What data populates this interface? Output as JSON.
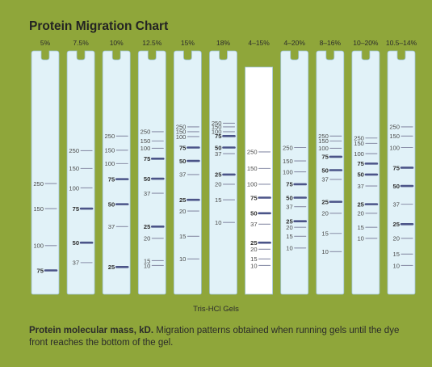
{
  "title": "Protein Migration Chart",
  "gel_type": "Tris-HCl Gels",
  "caption": {
    "bold": "Protein molecular mass, kD.",
    "text": " Migration patterns obtained when running gels until the dye front reaches the bottom of the gel."
  },
  "colors": {
    "background": "#8fa63a",
    "lane": "#e1f2f8",
    "lane_border": "#9fc3d4",
    "selected_lane": "#ffffff",
    "thin_band": "#8a8fa8",
    "thick_band": "#4b5488",
    "label": "#4a4a4a"
  },
  "chart_data": {
    "type": "diagram",
    "description_unit": "kD",
    "selected_lane": "4–15%",
    "lanes": [
      {
        "name": "5%",
        "bands": [
          {
            "kd": "250",
            "rel": 0.545,
            "bold": false
          },
          {
            "kd": "150",
            "rel": 0.648,
            "bold": false
          },
          {
            "kd": "100",
            "rel": 0.8,
            "bold": false
          },
          {
            "kd": "75",
            "rel": 0.902,
            "bold": true
          }
        ]
      },
      {
        "name": "7.5%",
        "bands": [
          {
            "kd": "250",
            "rel": 0.41,
            "bold": false
          },
          {
            "kd": "150",
            "rel": 0.483,
            "bold": false
          },
          {
            "kd": "100",
            "rel": 0.563,
            "bold": false
          },
          {
            "kd": "75",
            "rel": 0.648,
            "bold": true
          },
          {
            "kd": "50",
            "rel": 0.788,
            "bold": true
          },
          {
            "kd": "37",
            "rel": 0.87,
            "bold": false
          }
        ]
      },
      {
        "name": "10%",
        "bands": [
          {
            "kd": "250",
            "rel": 0.35,
            "bold": false
          },
          {
            "kd": "150",
            "rel": 0.408,
            "bold": false
          },
          {
            "kd": "100",
            "rel": 0.463,
            "bold": false
          },
          {
            "kd": "75",
            "rel": 0.527,
            "bold": true
          },
          {
            "kd": "50",
            "rel": 0.63,
            "bold": true
          },
          {
            "kd": "37",
            "rel": 0.722,
            "bold": false
          },
          {
            "kd": "25",
            "rel": 0.888,
            "bold": true
          }
        ]
      },
      {
        "name": "12.5%",
        "bands": [
          {
            "kd": "250",
            "rel": 0.332,
            "bold": false
          },
          {
            "kd": "150",
            "rel": 0.37,
            "bold": false
          },
          {
            "kd": "100",
            "rel": 0.4,
            "bold": false
          },
          {
            "kd": "75",
            "rel": 0.443,
            "bold": true
          },
          {
            "kd": "50",
            "rel": 0.525,
            "bold": true
          },
          {
            "kd": "37",
            "rel": 0.585,
            "bold": false
          },
          {
            "kd": "25",
            "rel": 0.722,
            "bold": true
          },
          {
            "kd": "20",
            "rel": 0.77,
            "bold": false
          },
          {
            "kd": "15",
            "rel": 0.862,
            "bold": false
          },
          {
            "kd": "10",
            "rel": 0.882,
            "bold": false
          }
        ]
      },
      {
        "name": "15%",
        "bands": [
          {
            "kd": "250",
            "rel": 0.312,
            "bold": false
          },
          {
            "kd": "150",
            "rel": 0.332,
            "bold": false
          },
          {
            "kd": "100",
            "rel": 0.352,
            "bold": false
          },
          {
            "kd": "75",
            "rel": 0.397,
            "bold": true
          },
          {
            "kd": "50",
            "rel": 0.452,
            "bold": true
          },
          {
            "kd": "37",
            "rel": 0.508,
            "bold": false
          },
          {
            "kd": "25",
            "rel": 0.612,
            "bold": true
          },
          {
            "kd": "20",
            "rel": 0.658,
            "bold": false
          },
          {
            "kd": "15",
            "rel": 0.762,
            "bold": false
          },
          {
            "kd": "10",
            "rel": 0.855,
            "bold": false
          }
        ]
      },
      {
        "name": "18%",
        "bands": [
          {
            "kd": "250",
            "rel": 0.297,
            "bold": false
          },
          {
            "kd": "150",
            "rel": 0.312,
            "bold": false
          },
          {
            "kd": "100",
            "rel": 0.332,
            "bold": false
          },
          {
            "kd": "75",
            "rel": 0.35,
            "bold": true
          },
          {
            "kd": "50",
            "rel": 0.397,
            "bold": true
          },
          {
            "kd": "37",
            "rel": 0.422,
            "bold": false
          },
          {
            "kd": "25",
            "rel": 0.508,
            "bold": true
          },
          {
            "kd": "20",
            "rel": 0.548,
            "bold": false
          },
          {
            "kd": "15",
            "rel": 0.612,
            "bold": false
          },
          {
            "kd": "10",
            "rel": 0.705,
            "bold": false
          }
        ]
      },
      {
        "name": "4–15%",
        "bands": [
          {
            "kd": "250",
            "rel": 0.415,
            "bold": false
          },
          {
            "kd": "150",
            "rel": 0.483,
            "bold": false
          },
          {
            "kd": "100",
            "rel": 0.548,
            "bold": false
          },
          {
            "kd": "75",
            "rel": 0.603,
            "bold": true
          },
          {
            "kd": "50",
            "rel": 0.667,
            "bold": true
          },
          {
            "kd": "37",
            "rel": 0.712,
            "bold": false
          },
          {
            "kd": "25",
            "rel": 0.788,
            "bold": true
          },
          {
            "kd": "20",
            "rel": 0.815,
            "bold": false
          },
          {
            "kd": "15",
            "rel": 0.855,
            "bold": false
          },
          {
            "kd": "10",
            "rel": 0.882,
            "bold": false
          }
        ]
      },
      {
        "name": "4–20%",
        "bands": [
          {
            "kd": "250",
            "rel": 0.397,
            "bold": false
          },
          {
            "kd": "150",
            "rel": 0.452,
            "bold": false
          },
          {
            "kd": "100",
            "rel": 0.497,
            "bold": false
          },
          {
            "kd": "75",
            "rel": 0.548,
            "bold": true
          },
          {
            "kd": "50",
            "rel": 0.603,
            "bold": true
          },
          {
            "kd": "37",
            "rel": 0.64,
            "bold": false
          },
          {
            "kd": "25",
            "rel": 0.7,
            "bold": true
          },
          {
            "kd": "20",
            "rel": 0.725,
            "bold": false
          },
          {
            "kd": "15",
            "rel": 0.762,
            "bold": false
          },
          {
            "kd": "10",
            "rel": 0.81,
            "bold": false
          }
        ]
      },
      {
        "name": "8–16%",
        "bands": [
          {
            "kd": "250",
            "rel": 0.35,
            "bold": false
          },
          {
            "kd": "150",
            "rel": 0.37,
            "bold": false
          },
          {
            "kd": "100",
            "rel": 0.4,
            "bold": false
          },
          {
            "kd": "75",
            "rel": 0.435,
            "bold": true
          },
          {
            "kd": "50",
            "rel": 0.49,
            "bold": true
          },
          {
            "kd": "37",
            "rel": 0.528,
            "bold": false
          },
          {
            "kd": "25",
            "rel": 0.62,
            "bold": true
          },
          {
            "kd": "20",
            "rel": 0.667,
            "bold": false
          },
          {
            "kd": "15",
            "rel": 0.75,
            "bold": false
          },
          {
            "kd": "10",
            "rel": 0.825,
            "bold": false
          }
        ]
      },
      {
        "name": "10–20%",
        "bands": [
          {
            "kd": "250",
            "rel": 0.358,
            "bold": false
          },
          {
            "kd": "150",
            "rel": 0.38,
            "bold": false
          },
          {
            "kd": "100",
            "rel": 0.422,
            "bold": false
          },
          {
            "kd": "75",
            "rel": 0.463,
            "bold": true
          },
          {
            "kd": "50",
            "rel": 0.508,
            "bold": true
          },
          {
            "kd": "37",
            "rel": 0.555,
            "bold": false
          },
          {
            "kd": "25",
            "rel": 0.63,
            "bold": true
          },
          {
            "kd": "20",
            "rel": 0.667,
            "bold": false
          },
          {
            "kd": "15",
            "rel": 0.725,
            "bold": false
          },
          {
            "kd": "10",
            "rel": 0.77,
            "bold": false
          }
        ]
      },
      {
        "name": "10.5–14%",
        "bands": [
          {
            "kd": "250",
            "rel": 0.312,
            "bold": false
          },
          {
            "kd": "150",
            "rel": 0.35,
            "bold": false
          },
          {
            "kd": "100",
            "rel": 0.397,
            "bold": false
          },
          {
            "kd": "75",
            "rel": 0.48,
            "bold": true
          },
          {
            "kd": "50",
            "rel": 0.555,
            "bold": true
          },
          {
            "kd": "37",
            "rel": 0.63,
            "bold": false
          },
          {
            "kd": "25",
            "rel": 0.712,
            "bold": true
          },
          {
            "kd": "20",
            "rel": 0.77,
            "bold": false
          },
          {
            "kd": "15",
            "rel": 0.835,
            "bold": false
          },
          {
            "kd": "10",
            "rel": 0.882,
            "bold": false
          }
        ]
      }
    ]
  }
}
